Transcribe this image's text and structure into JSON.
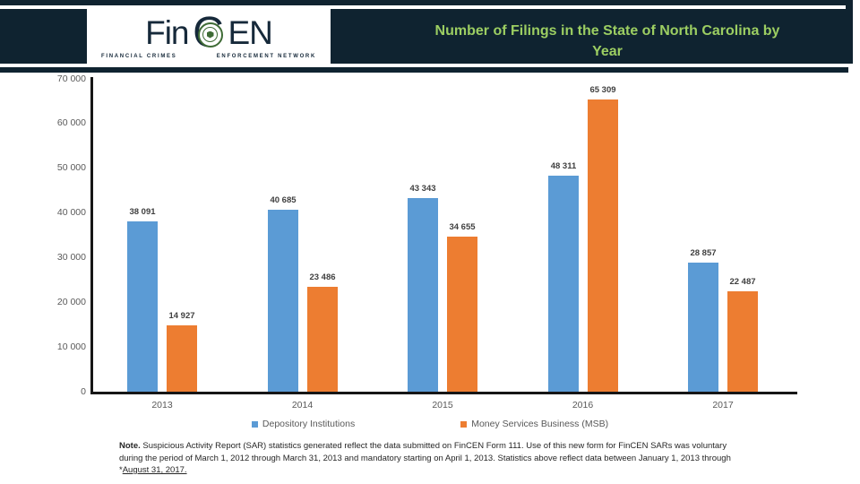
{
  "header": {
    "logo": {
      "fin": "Fin",
      "c": "C",
      "en": "EN",
      "caption_left": "FINANCIAL CRIMES",
      "caption_right": "ENFORCEMENT NETWORK"
    },
    "title_line1": "Number of Filings in the State of North Carolina by",
    "title_line2": "Year",
    "colors": {
      "band_navy": "#0f2330",
      "stripe_dark_green": "#4a7836",
      "stripe_light_green": "#83b551",
      "title_green": "#9cce62",
      "logo_navy": "#16293a",
      "seal_green": "#3e6b35"
    }
  },
  "chart_data": {
    "type": "bar",
    "title": "Number of Filings in the State of North Carolina by Year",
    "categories": [
      "2013",
      "2014",
      "2015",
      "2016",
      "2017"
    ],
    "series": [
      {
        "name": "Depository Institutions",
        "color": "#5b9bd5",
        "values": [
          38091,
          40685,
          43343,
          48311,
          28857
        ]
      },
      {
        "name": "Money Services Business (MSB)",
        "color": "#ed7d31",
        "values": [
          14927,
          23486,
          34655,
          65309,
          22487
        ]
      }
    ],
    "xlabel": "",
    "ylabel": "",
    "ylim": [
      0,
      70000
    ],
    "ytick_interval": 10000,
    "ytick_labels": [
      "0",
      "10 000",
      "20 000",
      "30 000",
      "40 000",
      "50 000",
      "60 000",
      "70 000"
    ],
    "grid": false,
    "legend_position": "bottom",
    "data_labels": "space-separated thousands above each bar",
    "axis_color": "#161616",
    "tick_label_color": "#595959",
    "data_label_color": "#3f3f3f"
  },
  "footnote": {
    "segments": [
      {
        "text": "Note.",
        "bold": true
      },
      {
        "text": " Suspicious Activity Report (SAR) statistics generated reflect the data submitted on FinCEN Form 111. Use of this new form for FinCEN SARs was voluntary during the period of March 1, 2012 through March 31, 2013 and mandatory starting on April 1, 2013. Statistics above reflect data between January 1, 2013 through *"
      },
      {
        "text": "August 31, 2017.",
        "underline": true
      }
    ]
  }
}
